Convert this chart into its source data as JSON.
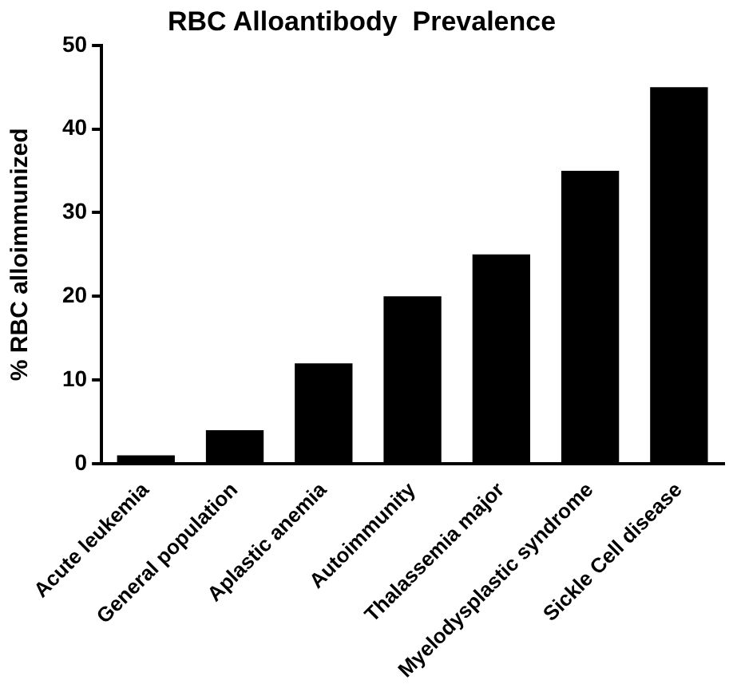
{
  "chart_data": {
    "type": "bar",
    "title": "RBC Alloantibody  Prevalence",
    "ylabel": "% RBC alloimmunized",
    "categories": [
      "Acute leukemia",
      "General population",
      "Aplastic anemia",
      "Autoimmunity",
      "Thalassemia major",
      "Myelodysplastic syndrome",
      "Sickle Cell disease"
    ],
    "values": [
      1,
      4,
      12,
      20,
      25,
      35,
      45
    ],
    "color": "#000000",
    "ylim": [
      0,
      50
    ],
    "yticks": [
      0,
      10,
      20,
      30,
      40,
      50
    ],
    "grid": false,
    "legend": false
  }
}
